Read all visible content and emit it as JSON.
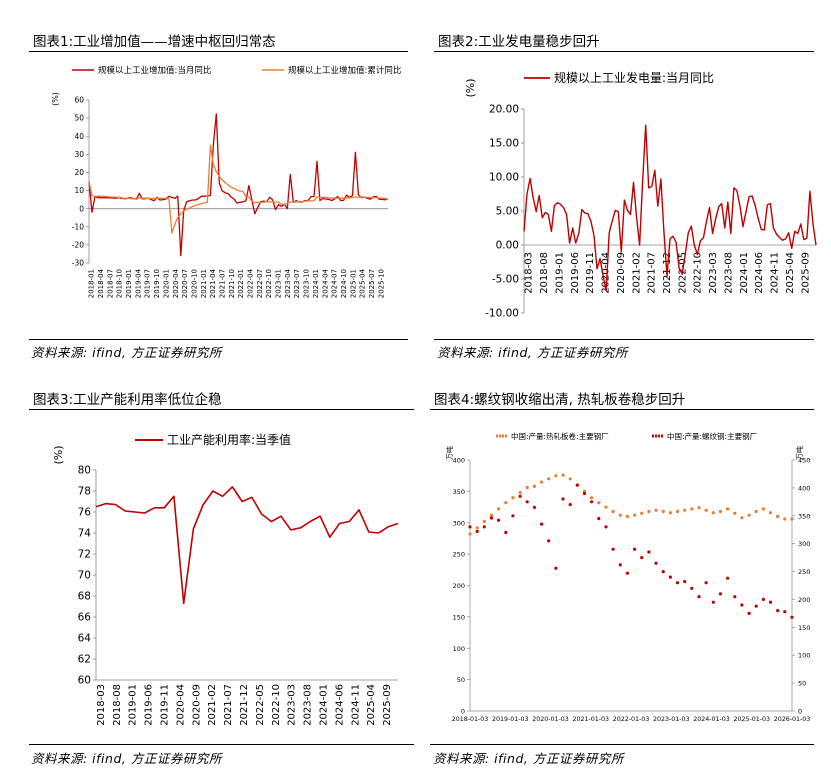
{
  "panels": [
    {
      "title": "图表1:工业增加值——增速中枢回归常态",
      "source": "资料来源: ifind, 方正证券研究所",
      "chart_data": {
        "type": "line",
        "unit_label": "(%)",
        "ylim": [
          -30,
          60
        ],
        "yticks": [
          -30,
          -20,
          -10,
          0,
          10,
          20,
          30,
          40,
          50,
          60
        ],
        "xticks": [
          "2018-01",
          "2018-04",
          "2018-07",
          "2018-10",
          "2019-01",
          "2019-04",
          "2019-07",
          "2019-10",
          "2020-01",
          "2020-04",
          "2020-07",
          "2020-10",
          "2021-01",
          "2021-04",
          "2021-07",
          "2021-10",
          "2022-01",
          "2022-04",
          "2022-07",
          "2022-10",
          "2023-01",
          "2023-04",
          "2023-07",
          "2023-10",
          "2024-01",
          "2024-04",
          "2024-07",
          "2024-10",
          "2025-01",
          "2025-04",
          "2025-07",
          "2025-10"
        ],
        "series": [
          {
            "name": "规模以上工业增加值:当月同比",
            "color": "#c00000",
            "values": [
              15,
              -2,
              6.5,
              6.2,
              6,
              6.1,
              6,
              6,
              5.9,
              5.8,
              6.1,
              5.8,
              5.5,
              5.7,
              6.1,
              5.5,
              5.3,
              8.5,
              5.4,
              5.5,
              5.8,
              5,
              4.4,
              6.3,
              4.8,
              5,
              5.3,
              6.9,
              6.2,
              5.7,
              6.9,
              -25.9,
              -1.1,
              3.9,
              4.4,
              4.8,
              4.8,
              5.6,
              6.9,
              6.9,
              7,
              7.3,
              35.1,
              52.3,
              14.1,
              9.8,
              8.8,
              8.3,
              6.4,
              5.3,
              3.1,
              3.5,
              3.8,
              4.3,
              12.8,
              5,
              -2.9,
              0.7,
              3.9,
              4.2,
              3.8,
              6.3,
              5,
              -0.5,
              2.2,
              1.3,
              2.4,
              0,
              18.9,
              3.5,
              4.4,
              3.7,
              3.7,
              4.5,
              4.5,
              6.6,
              6.8,
              26.1,
              4.5,
              5.6,
              5.3,
              5.1,
              4.5,
              5.4,
              6.7,
              4.5,
              4.6,
              7.5,
              6.2,
              7.2,
              31.1,
              7.7,
              6.1,
              6.4,
              5.7,
              5.2,
              6.5,
              6.8,
              5.2,
              5.1,
              4.9,
              5.5
            ]
          },
          {
            "name": "规模以上工业增加值:累计同比",
            "color": "#ed7d31",
            "values": [
              15,
              7.2,
              6.8,
              6.9,
              6.9,
              6.8,
              6.7,
              6.5,
              6.4,
              6.4,
              6.3,
              6.2,
              5.3,
              5.6,
              5.6,
              5.4,
              5.3,
              6,
              5.8,
              5.8,
              5.7,
              5.6,
              5.6,
              5.7,
              5.7,
              5.7,
              5.7,
              5.7,
              -13.5,
              -8.4,
              -4.9,
              -2.8,
              -1.3,
              -0.4,
              0.4,
              1.2,
              1.8,
              2.3,
              2.8,
              3.2,
              3.5,
              35.1,
              24.5,
              20.3,
              17.8,
              15.9,
              14.4,
              13.1,
              11.8,
              11.1,
              10.3,
              9.7,
              9.6,
              6.5,
              6.5,
              4,
              3.3,
              3.4,
              3.5,
              3.6,
              3.9,
              3.8,
              3.8,
              3.6,
              3.6,
              2.4,
              2.4,
              3,
              3.6,
              3.6,
              3.8,
              3.9,
              4,
              4.1,
              4.3,
              4.3,
              4.4,
              6.6,
              6.1,
              6.3,
              6.2,
              6,
              5.9,
              5.9,
              5.8,
              5.8,
              5.8,
              5.9,
              5.9,
              6.2,
              6.4,
              6.4,
              6.5,
              6.4,
              6.2,
              6.2,
              6.1,
              6.1,
              5.9,
              5.8,
              5.6,
              5.5
            ]
          }
        ]
      }
    },
    {
      "title": "图表2:工业发电量稳步回升",
      "source": "资料来源: ifind, 方正证券研究所",
      "chart_data": {
        "type": "line",
        "unit_label": "(%)",
        "ylim": [
          -10,
          20
        ],
        "yticks": [
          "20.00",
          "15.00",
          "10.00",
          "5.00",
          "0.00",
          "-5.00",
          "-10.00"
        ],
        "xticks": [
          "2018-03",
          "2018-08",
          "2019-01",
          "2019-06",
          "2019-11",
          "2020-04",
          "2020-09",
          "2021-02",
          "2021-07",
          "2021-12",
          "2022-05",
          "2022-10",
          "2023-03",
          "2023-08",
          "2024-01",
          "2024-06",
          "2024-11",
          "2025-04",
          "2025-09"
        ],
        "series": [
          {
            "name": "规模以上工业发电量:当月同比",
            "color": "#c00000",
            "values": [
              2,
              7.5,
              9.8,
              7,
              4.9,
              7.3,
              4,
              4.8,
              4.5,
              2,
              5.8,
              6.2,
              6,
              5.5,
              4.5,
              0.3,
              2.5,
              0.3,
              1.7,
              5.2,
              4.7,
              4.6,
              3.5,
              1.4,
              -3.5,
              -2,
              -4.5,
              -6.7,
              1.8,
              3.5,
              5.1,
              4.9,
              -1,
              6.6,
              5.1,
              4.5,
              9.2,
              4.2,
              0,
              9.3,
              17.6,
              8.4,
              8.6,
              11,
              5.7,
              9.7,
              2,
              -4.6,
              0.9,
              1.3,
              0.4,
              -3.4,
              -4.3,
              -1.4,
              1.8,
              2.8,
              0,
              -1.4,
              0.6,
              1.1,
              3.5,
              5.5,
              1.7,
              3.8,
              5.6,
              6.1,
              2.5,
              6.3,
              1.7,
              8.4,
              8,
              5.7,
              2.7,
              4.9,
              7.1,
              7.2,
              5.8,
              3.9,
              2.3,
              2.2,
              5.9,
              6.1,
              2.5,
              1.6,
              1.1,
              0.7,
              0.9,
              1.8,
              -0.5,
              2,
              1.7,
              3.1,
              0.8,
              1,
              7.9,
              3.1,
              0
            ]
          }
        ]
      }
    },
    {
      "title": "图表3:工业产能利用率低位企稳",
      "source": "资料来源: ifind, 方正证券研究所",
      "chart_data": {
        "type": "line",
        "unit_label": "(%)",
        "ylim": [
          60,
          80
        ],
        "yticks": [
          60,
          62,
          64,
          66,
          68,
          70,
          72,
          74,
          76,
          78,
          80
        ],
        "xticks": [
          "2018-03",
          "2018-08",
          "2019-01",
          "2019-06",
          "2019-11",
          "2020-04",
          "2020-09",
          "2021-02",
          "2021-07",
          "2021-12",
          "2022-05",
          "2022-10",
          "2023-03",
          "2023-08",
          "2024-01",
          "2024-06",
          "2024-11",
          "2025-04",
          "2025-09"
        ],
        "series": [
          {
            "name": "工业产能利用率:当季值",
            "color": "#c00000",
            "values": [
              76.5,
              76.8,
              76.7,
              76.1,
              76,
              75.9,
              76.4,
              76.4,
              77.5,
              67.3,
              74.4,
              76.7,
              78,
              77.5,
              78.4,
              77,
              77.4,
              75.8,
              75.1,
              75.6,
              74.3,
              74.5,
              75.1,
              75.6,
              73.6,
              74.9,
              75.1,
              76.2,
              74.1,
              74,
              74.6,
              74.9
            ]
          }
        ]
      }
    },
    {
      "title": "图表4:螺纹钢收缩出清, 热轧板卷稳步回升",
      "source": "资料来源: ifind, 方正证券研究所",
      "chart_data": {
        "type": "scatter",
        "unit_left": "万吨",
        "unit_right": "万吨",
        "ylim_left": [
          0,
          400
        ],
        "ylim_right": [
          0,
          450
        ],
        "yticks_left": [
          0,
          50,
          100,
          150,
          200,
          250,
          300,
          350,
          400
        ],
        "yticks_right": [
          0,
          50,
          100,
          150,
          200,
          250,
          300,
          350,
          400,
          450
        ],
        "xticks": [
          "2018-01-03",
          "2019-01-03",
          "2020-01-03",
          "2021-01-03",
          "2022-01-03",
          "2023-01-03",
          "2024-01-03",
          "2025-01-03",
          "2026-01-03"
        ],
        "series": [
          {
            "name": "中国:产量:热轧板卷:主要钢厂",
            "color": "#ed7d31",
            "axis": "left",
            "values": [
              282,
              292,
              302,
              312,
              322,
              332,
              340,
              348,
              356,
              358,
              365,
              370,
              375,
              376,
              370,
              360,
              350,
              340,
              332,
              325,
              318,
              312,
              310,
              312,
              315,
              318,
              320,
              318,
              316,
              318,
              320,
              322,
              324,
              320,
              316,
              318,
              322,
              315,
              308,
              312,
              318,
              322,
              316,
              310,
              306,
              306
            ]
          },
          {
            "name": "中国:产量:螺纹钢:主要钢厂",
            "color": "#c00000",
            "axis": "right",
            "values": [
              330,
              322,
              330,
              346,
              342,
              320,
              350,
              385,
              375,
              365,
              335,
              305,
              256,
              380,
              370,
              405,
              390,
              375,
              345,
              330,
              290,
              262,
              247,
              290,
              275,
              285,
              265,
              250,
              240,
              230,
              232,
              220,
              205,
              230,
              195,
              210,
              238,
              205,
              190,
              175,
              188,
              200,
              195,
              180,
              178,
              168
            ]
          }
        ]
      }
    }
  ]
}
